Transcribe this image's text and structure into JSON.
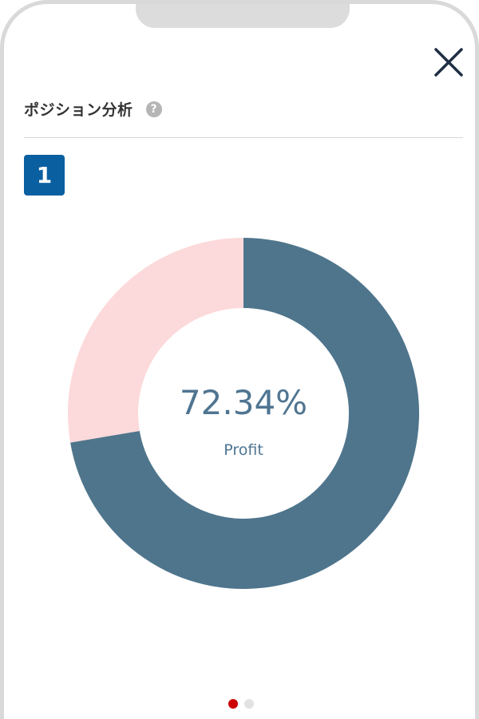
{
  "header": {
    "title": "ポジション分析",
    "help_icon": "question-circle-icon",
    "close_icon": "close-icon"
  },
  "badge": {
    "label": "1"
  },
  "chart_data": {
    "type": "pie",
    "style": "donut",
    "slices": [
      {
        "label": "Profit",
        "value": 72.34,
        "color": "#4f758c"
      },
      {
        "label": "",
        "value": 27.66,
        "color": "#fcd9da"
      }
    ],
    "center_value": "72.34%",
    "center_label": "Profit"
  },
  "pager": {
    "total": 2,
    "active": 0,
    "active_color": "#cc0000",
    "inactive_color": "#e2e2e2"
  },
  "colors": {
    "accent": "#0a5fa0",
    "text_primary": "#333333",
    "chart_text": "#4f7591"
  }
}
